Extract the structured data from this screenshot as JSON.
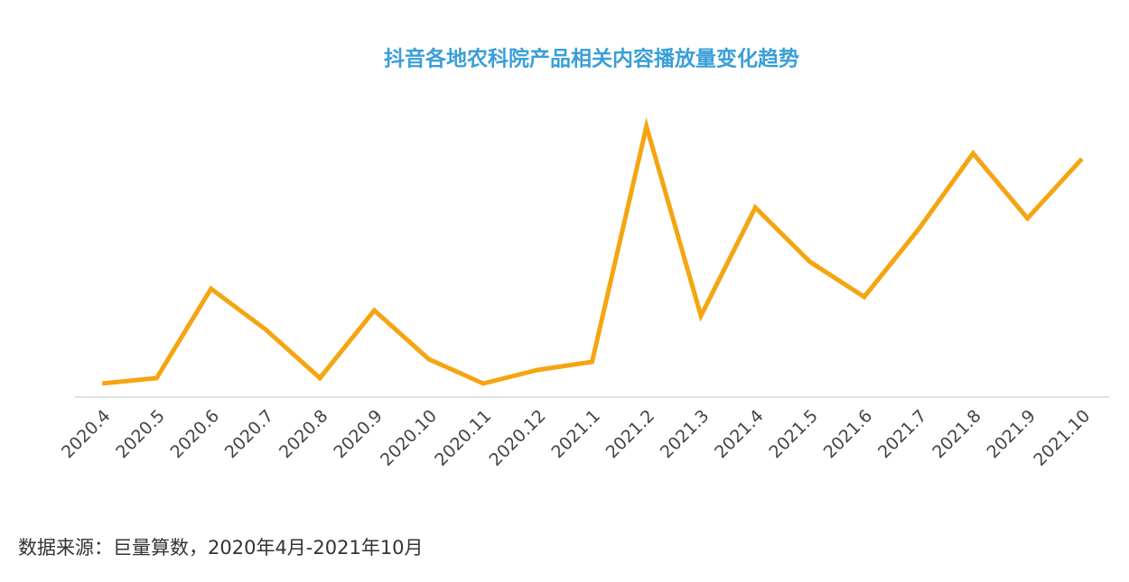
{
  "chart_data": {
    "type": "line",
    "title": "抖音各地农科院产品相关内容播放量变化趋势",
    "source": "数据来源：巨量算数，2020年4月-2021年10月",
    "categories": [
      "2020.4",
      "2020.5",
      "2020.6",
      "2020.7",
      "2020.8",
      "2020.9",
      "2020.10",
      "2020.11",
      "2020.12",
      "2021.1",
      "2021.2",
      "2021.3",
      "2021.4",
      "2021.5",
      "2021.6",
      "2021.7",
      "2021.8",
      "2021.9",
      "2021.10"
    ],
    "values": [
      5,
      7,
      40,
      25,
      7,
      32,
      14,
      5,
      10,
      13,
      100,
      30,
      70,
      50,
      37,
      62,
      90,
      66,
      88
    ],
    "color": "#f5a511",
    "ylim": [
      0,
      100
    ]
  }
}
